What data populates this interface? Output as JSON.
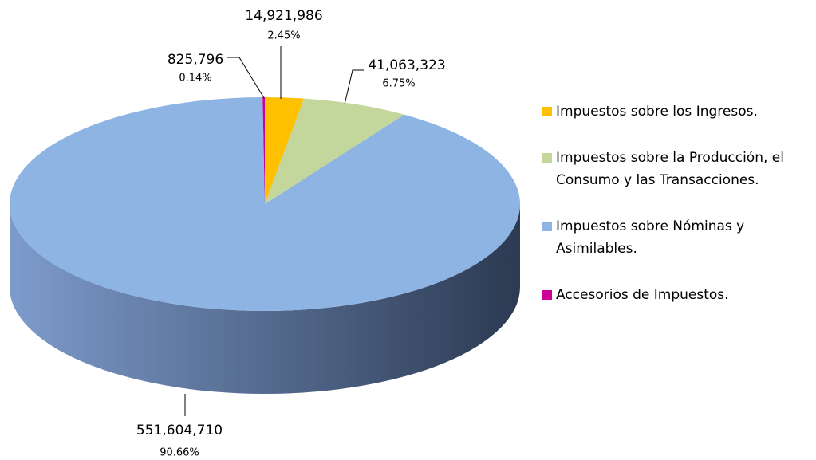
{
  "chart_data": {
    "type": "pie3d",
    "categories": [
      "Impuestos sobre los Ingresos.",
      "Impuestos sobre la Producción, el Consumo y las Transacciones.",
      "Impuestos sobre Nóminas y Asimilables.",
      "Accesorios de Impuestos."
    ],
    "values": [
      14921986,
      41063323,
      551604710,
      825796
    ],
    "value_labels": [
      "14,921,986",
      "41,063,323",
      "551,604,710",
      "825,796"
    ],
    "percents": [
      2.45,
      6.75,
      90.66,
      0.14
    ],
    "percent_labels": [
      "2.45%",
      "6.75%",
      "90.66%",
      "0.14%"
    ],
    "colors": [
      "#ffc000",
      "#c3d69b",
      "#8eb4e3",
      "#cc0099"
    ],
    "legend": "right"
  }
}
